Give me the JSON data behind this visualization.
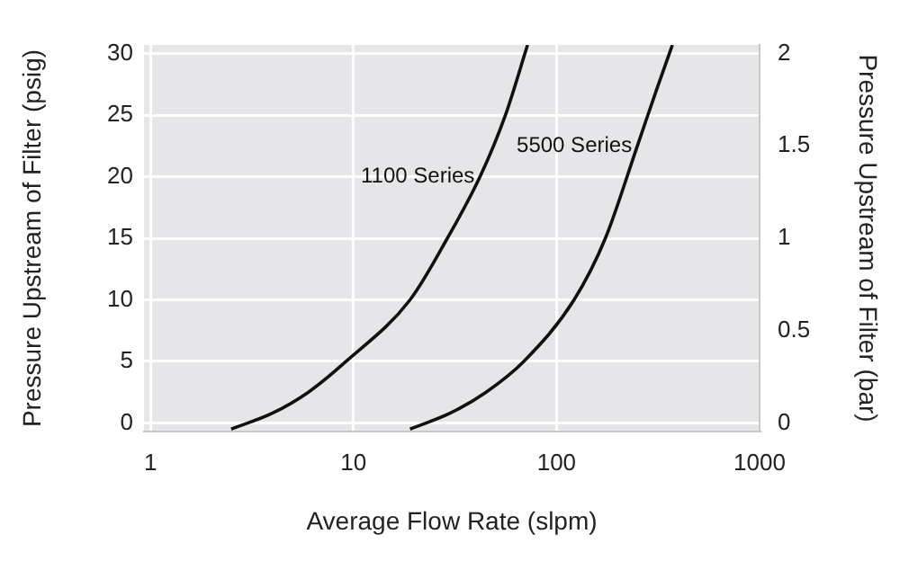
{
  "chart_data": {
    "type": "line",
    "xlabel": "Average Flow Rate (slpm)",
    "ylabel": "Pressure Upstream of Filter (psig)",
    "y2label": "Pressure Upstream of Filter (bar)",
    "log": "x",
    "xlim": [
      0.93,
      1000
    ],
    "xticks": [
      1,
      10,
      100,
      1000
    ],
    "ylim": [
      -0.7,
      30.7
    ],
    "yticks": [
      0,
      5,
      10,
      15,
      20,
      25,
      30
    ],
    "y2lim": [
      -0.047,
      2.047
    ],
    "y2ticks": [
      0,
      0.5,
      1,
      1.5,
      2
    ],
    "grid": true,
    "legend": false,
    "series": [
      {
        "name": "1100 Series",
        "color": "#111111",
        "x": [
          2.5,
          4,
          6,
          9.2,
          19,
          29,
          42,
          56,
          72
        ],
        "values": [
          -0.5,
          0.8,
          2.5,
          5,
          10,
          15,
          20,
          25,
          30.7
        ]
      },
      {
        "name": "5500 Series",
        "color": "#111111",
        "x": [
          19,
          30,
          45,
          69,
          122,
          174,
          250,
          310,
          372
        ],
        "values": [
          -0.5,
          0.8,
          2.5,
          5,
          10,
          15,
          22.5,
          27,
          30.7
        ]
      }
    ]
  }
}
